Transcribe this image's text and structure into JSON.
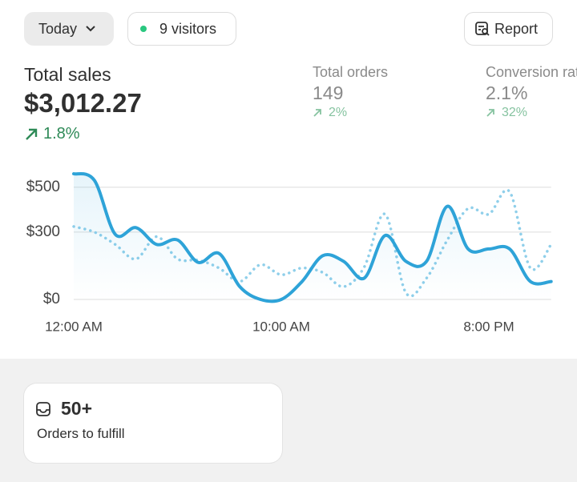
{
  "header": {
    "date_button": "Today",
    "visitors_button": "9 visitors",
    "report_button": "Report"
  },
  "metrics": {
    "total_sales": {
      "label": "Total sales",
      "value": "$3,012.27",
      "change": "1.8%"
    },
    "total_orders": {
      "label": "Total orders",
      "value": "149",
      "change": "2%"
    },
    "conversion_rate": {
      "label": "Conversion rate",
      "value": "2.1%",
      "change": "32%"
    }
  },
  "chart_data": {
    "type": "line",
    "categories": [
      "12:00 AM",
      null,
      null,
      null,
      null,
      null,
      null,
      null,
      null,
      null,
      "10:00 AM",
      null,
      null,
      null,
      null,
      null,
      null,
      null,
      null,
      null,
      "8:00 PM",
      null,
      null,
      null
    ],
    "series": [
      {
        "color": "#2ea3d8",
        "style": "solid",
        "values": [
          560,
          530,
          290,
          320,
          245,
          265,
          165,
          205,
          57,
          0,
          0,
          80,
          195,
          170,
          95,
          285,
          170,
          170,
          415,
          225,
          225,
          225,
          80,
          80
        ]
      },
      {
        "color": "#8fcfea",
        "style": "dotted",
        "values": [
          325,
          300,
          245,
          180,
          280,
          180,
          175,
          140,
          80,
          155,
          110,
          140,
          120,
          57,
          145,
          380,
          30,
          95,
          265,
          405,
          380,
          480,
          140,
          245
        ]
      }
    ],
    "ylim": [
      0,
      560
    ],
    "yticks": [
      {
        "value": 0,
        "label": "$0"
      },
      {
        "value": 300,
        "label": "$300"
      },
      {
        "value": 500,
        "label": "$500"
      }
    ],
    "grid": true
  },
  "card": {
    "count": "50+",
    "label": "Orders to fulfill"
  }
}
